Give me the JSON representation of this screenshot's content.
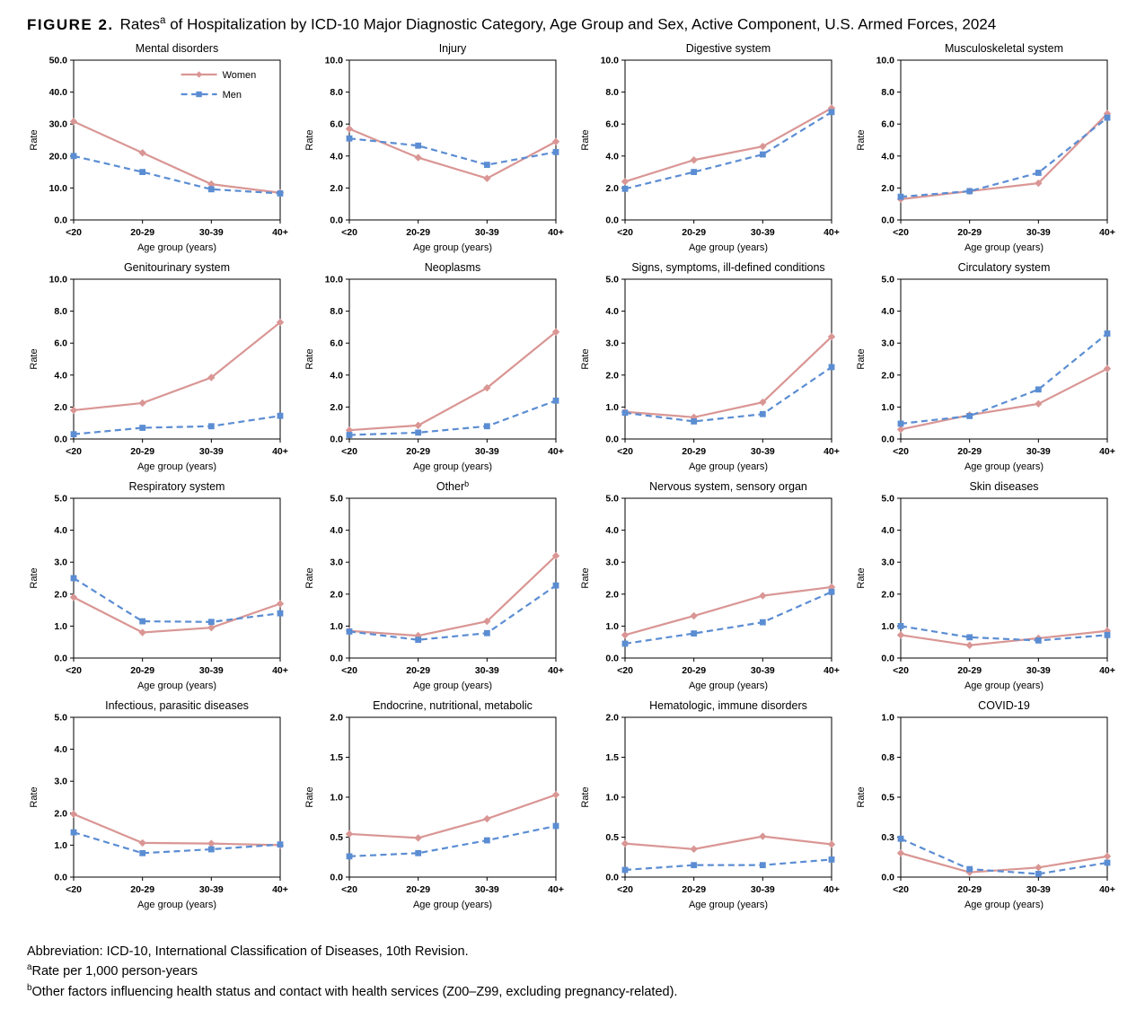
{
  "figure": {
    "label": "FIGURE 2.",
    "title_pre": "Rates",
    "title_sup": "a",
    "title_post": " of Hospitalization by ICD-10 Major Diagnostic Category, Age Group and Sex, Active Component, U.S. Armed Forces, 2024"
  },
  "legend": {
    "women": "Women",
    "men": "Men"
  },
  "colors": {
    "women": "#d99694",
    "men": "#5b8dd3",
    "axis": "#000000"
  },
  "axes": {
    "xlabel": "Age group (years)",
    "ylabel": "Rate",
    "categories": [
      "<20",
      "20-29",
      "30-39",
      "40+"
    ]
  },
  "footnotes": [
    {
      "sup": "",
      "text": "Abbreviation: ICD-10, International Classification of Diseases, 10th Revision."
    },
    {
      "sup": "a",
      "text": "Rate per 1,000 person-years"
    },
    {
      "sup": "b",
      "text": "Other factors influencing health status and contact with health services (Z00–Z99, excluding pregnancy-related)."
    }
  ],
  "chart_data": [
    {
      "type": "line",
      "title": "Mental disorders",
      "title_sup": "",
      "show_legend": true,
      "categories": [
        "<20",
        "20-29",
        "30-39",
        "40+"
      ],
      "ylim": [
        0,
        50
      ],
      "yticks": [
        0,
        10,
        20,
        30,
        40,
        50
      ],
      "ytick_labels": [
        "0.0",
        "10.0",
        "20.0",
        "30.0",
        "40.0",
        "50.0"
      ],
      "series": [
        {
          "name": "Women",
          "values": [
            30.8,
            21.0,
            11.2,
            8.5
          ]
        },
        {
          "name": "Men",
          "values": [
            20.0,
            15.0,
            9.6,
            8.3
          ]
        }
      ]
    },
    {
      "type": "line",
      "title": "Injury",
      "title_sup": "",
      "show_legend": false,
      "categories": [
        "<20",
        "20-29",
        "30-39",
        "40+"
      ],
      "ylim": [
        0,
        10
      ],
      "yticks": [
        0,
        2,
        4,
        6,
        8,
        10
      ],
      "ytick_labels": [
        "0.0",
        "2.0",
        "4.0",
        "6.0",
        "8.0",
        "10.0"
      ],
      "series": [
        {
          "name": "Women",
          "values": [
            5.7,
            3.9,
            2.6,
            4.9
          ]
        },
        {
          "name": "Men",
          "values": [
            5.1,
            4.65,
            3.45,
            4.25
          ]
        }
      ]
    },
    {
      "type": "line",
      "title": "Digestive system",
      "title_sup": "",
      "show_legend": false,
      "categories": [
        "<20",
        "20-29",
        "30-39",
        "40+"
      ],
      "ylim": [
        0,
        10
      ],
      "yticks": [
        0,
        2,
        4,
        6,
        8,
        10
      ],
      "ytick_labels": [
        "0.0",
        "2.0",
        "4.0",
        "6.0",
        "8.0",
        "10.0"
      ],
      "series": [
        {
          "name": "Women",
          "values": [
            2.4,
            3.75,
            4.6,
            7.0
          ]
        },
        {
          "name": "Men",
          "values": [
            1.95,
            3.0,
            4.1,
            6.75
          ]
        }
      ]
    },
    {
      "type": "line",
      "title": "Musculoskeletal system",
      "title_sup": "",
      "show_legend": false,
      "categories": [
        "<20",
        "20-29",
        "30-39",
        "40+"
      ],
      "ylim": [
        0,
        10
      ],
      "yticks": [
        0,
        2,
        4,
        6,
        8,
        10
      ],
      "ytick_labels": [
        "0.0",
        "2.0",
        "4.0",
        "6.0",
        "8.0",
        "10.0"
      ],
      "series": [
        {
          "name": "Women",
          "values": [
            1.3,
            1.8,
            2.3,
            6.65
          ]
        },
        {
          "name": "Men",
          "values": [
            1.45,
            1.8,
            2.95,
            6.4
          ]
        }
      ]
    },
    {
      "type": "line",
      "title": "Genitourinary system",
      "title_sup": "",
      "show_legend": false,
      "categories": [
        "<20",
        "20-29",
        "30-39",
        "40+"
      ],
      "ylim": [
        0,
        10
      ],
      "yticks": [
        0,
        2,
        4,
        6,
        8,
        10
      ],
      "ytick_labels": [
        "0.0",
        "2.0",
        "4.0",
        "6.0",
        "8.0",
        "10.0"
      ],
      "series": [
        {
          "name": "Women",
          "values": [
            1.8,
            2.25,
            3.85,
            7.3
          ]
        },
        {
          "name": "Men",
          "values": [
            0.3,
            0.7,
            0.8,
            1.45
          ]
        }
      ]
    },
    {
      "type": "line",
      "title": "Neoplasms",
      "title_sup": "",
      "show_legend": false,
      "categories": [
        "<20",
        "20-29",
        "30-39",
        "40+"
      ],
      "ylim": [
        0,
        10
      ],
      "yticks": [
        0,
        2,
        4,
        6,
        8,
        10
      ],
      "ytick_labels": [
        "0.0",
        "2.0",
        "4.0",
        "6.0",
        "8.0",
        "10.0"
      ],
      "series": [
        {
          "name": "Women",
          "values": [
            0.55,
            0.85,
            3.2,
            6.7
          ]
        },
        {
          "name": "Men",
          "values": [
            0.25,
            0.4,
            0.8,
            2.4
          ]
        }
      ]
    },
    {
      "type": "line",
      "title": "Signs, symptoms, ill-defined conditions",
      "title_sup": "",
      "show_legend": false,
      "categories": [
        "<20",
        "20-29",
        "30-39",
        "40+"
      ],
      "ylim": [
        0,
        5
      ],
      "yticks": [
        0,
        1,
        2,
        3,
        4,
        5
      ],
      "ytick_labels": [
        "0.0",
        "1.0",
        "2.0",
        "3.0",
        "4.0",
        "5.0"
      ],
      "series": [
        {
          "name": "Women",
          "values": [
            0.85,
            0.68,
            1.15,
            3.2
          ]
        },
        {
          "name": "Men",
          "values": [
            0.82,
            0.55,
            0.78,
            2.25
          ]
        }
      ]
    },
    {
      "type": "line",
      "title": "Circulatory system",
      "title_sup": "",
      "show_legend": false,
      "categories": [
        "<20",
        "20-29",
        "30-39",
        "40+"
      ],
      "ylim": [
        0,
        5
      ],
      "yticks": [
        0,
        1,
        2,
        3,
        4,
        5
      ],
      "ytick_labels": [
        "0.0",
        "1.0",
        "2.0",
        "3.0",
        "4.0",
        "5.0"
      ],
      "series": [
        {
          "name": "Women",
          "values": [
            0.3,
            0.75,
            1.1,
            2.2
          ]
        },
        {
          "name": "Men",
          "values": [
            0.48,
            0.72,
            1.55,
            3.3
          ]
        }
      ]
    },
    {
      "type": "line",
      "title": "Respiratory system",
      "title_sup": "",
      "show_legend": false,
      "categories": [
        "<20",
        "20-29",
        "30-39",
        "40+"
      ],
      "ylim": [
        0,
        5
      ],
      "yticks": [
        0,
        1,
        2,
        3,
        4,
        5
      ],
      "ytick_labels": [
        "0.0",
        "1.0",
        "2.0",
        "3.0",
        "4.0",
        "5.0"
      ],
      "series": [
        {
          "name": "Women",
          "values": [
            1.9,
            0.8,
            0.95,
            1.7
          ]
        },
        {
          "name": "Men",
          "values": [
            2.5,
            1.15,
            1.13,
            1.4
          ]
        }
      ]
    },
    {
      "type": "line",
      "title": "Other",
      "title_sup": "b",
      "show_legend": false,
      "categories": [
        "<20",
        "20-29",
        "30-39",
        "40+"
      ],
      "ylim": [
        0,
        5
      ],
      "yticks": [
        0,
        1,
        2,
        3,
        4,
        5
      ],
      "ytick_labels": [
        "0.0",
        "1.0",
        "2.0",
        "3.0",
        "4.0",
        "5.0"
      ],
      "series": [
        {
          "name": "Women",
          "values": [
            0.85,
            0.7,
            1.15,
            3.2
          ]
        },
        {
          "name": "Men",
          "values": [
            0.83,
            0.57,
            0.78,
            2.27
          ]
        }
      ]
    },
    {
      "type": "line",
      "title": "Nervous system, sensory organ",
      "title_sup": "",
      "show_legend": false,
      "categories": [
        "<20",
        "20-29",
        "30-39",
        "40+"
      ],
      "ylim": [
        0,
        5
      ],
      "yticks": [
        0,
        1,
        2,
        3,
        4,
        5
      ],
      "ytick_labels": [
        "0.0",
        "1.0",
        "2.0",
        "3.0",
        "4.0",
        "5.0"
      ],
      "series": [
        {
          "name": "Women",
          "values": [
            0.72,
            1.32,
            1.95,
            2.22
          ]
        },
        {
          "name": "Men",
          "values": [
            0.45,
            0.77,
            1.12,
            2.07
          ]
        }
      ]
    },
    {
      "type": "line",
      "title": "Skin diseases",
      "title_sup": "",
      "show_legend": false,
      "categories": [
        "<20",
        "20-29",
        "30-39",
        "40+"
      ],
      "ylim": [
        0,
        5
      ],
      "yticks": [
        0,
        1,
        2,
        3,
        4,
        5
      ],
      "ytick_labels": [
        "0.0",
        "1.0",
        "2.0",
        "3.0",
        "4.0",
        "5.0"
      ],
      "series": [
        {
          "name": "Women",
          "values": [
            0.72,
            0.4,
            0.62,
            0.85
          ]
        },
        {
          "name": "Men",
          "values": [
            1.0,
            0.65,
            0.55,
            0.72
          ]
        }
      ]
    },
    {
      "type": "line",
      "title": "Infectious, parasitic diseases",
      "title_sup": "",
      "show_legend": false,
      "categories": [
        "<20",
        "20-29",
        "30-39",
        "40+"
      ],
      "ylim": [
        0,
        5
      ],
      "yticks": [
        0,
        1,
        2,
        3,
        4,
        5
      ],
      "ytick_labels": [
        "0.0",
        "1.0",
        "2.0",
        "3.0",
        "4.0",
        "5.0"
      ],
      "series": [
        {
          "name": "Women",
          "values": [
            1.97,
            1.07,
            1.05,
            1.0
          ]
        },
        {
          "name": "Men",
          "values": [
            1.4,
            0.75,
            0.87,
            1.02
          ]
        }
      ]
    },
    {
      "type": "line",
      "title": "Endocrine, nutritional, metabolic",
      "title_sup": "",
      "show_legend": false,
      "categories": [
        "<20",
        "20-29",
        "30-39",
        "40+"
      ],
      "ylim": [
        0,
        2
      ],
      "yticks": [
        0,
        0.5,
        1.0,
        1.5,
        2.0
      ],
      "ytick_labels": [
        "0.0",
        "0.5",
        "1.0",
        "1.5",
        "2.0"
      ],
      "series": [
        {
          "name": "Women",
          "values": [
            0.54,
            0.49,
            0.73,
            1.03
          ]
        },
        {
          "name": "Men",
          "values": [
            0.26,
            0.3,
            0.46,
            0.64
          ]
        }
      ]
    },
    {
      "type": "line",
      "title": "Hematologic, immune disorders",
      "title_sup": "",
      "show_legend": false,
      "categories": [
        "<20",
        "20-29",
        "30-39",
        "40+"
      ],
      "ylim": [
        0,
        2
      ],
      "yticks": [
        0,
        0.5,
        1.0,
        1.5,
        2.0
      ],
      "ytick_labels": [
        "0.0",
        "0.5",
        "1.0",
        "1.5",
        "2.0"
      ],
      "series": [
        {
          "name": "Women",
          "values": [
            0.42,
            0.35,
            0.51,
            0.41
          ]
        },
        {
          "name": "Men",
          "values": [
            0.09,
            0.15,
            0.15,
            0.22
          ]
        }
      ]
    },
    {
      "type": "line",
      "title": "COVID-19",
      "title_sup": "",
      "show_legend": false,
      "categories": [
        "<20",
        "20-29",
        "30-39",
        "40+"
      ],
      "ylim": [
        0,
        1
      ],
      "yticks": [
        0,
        0.25,
        0.5,
        0.75,
        1.0
      ],
      "ytick_labels": [
        "0.0",
        "0.3",
        "0.5",
        "0.8",
        "1.0"
      ],
      "series": [
        {
          "name": "Women",
          "values": [
            0.15,
            0.03,
            0.06,
            0.13
          ]
        },
        {
          "name": "Men",
          "values": [
            0.24,
            0.05,
            0.02,
            0.09
          ]
        }
      ]
    }
  ]
}
